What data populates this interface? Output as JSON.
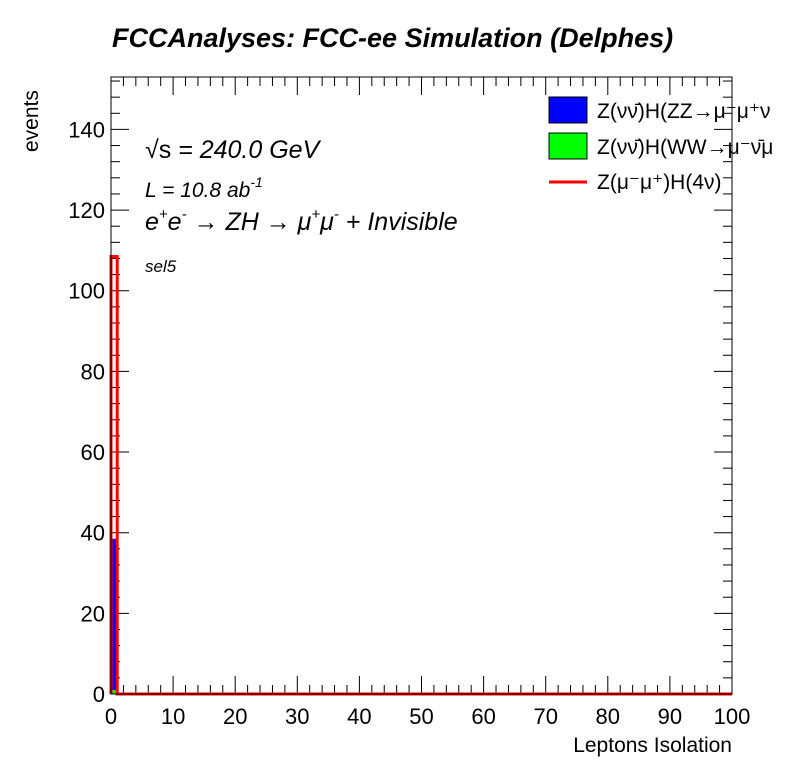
{
  "chart_data": {
    "type": "bar",
    "title": "FCCAnalyses: FCC-ee Simulation (Delphes)",
    "xlabel": "Leptons Isolation",
    "ylabel": "events",
    "xlim": [
      0,
      100
    ],
    "ylim": [
      0,
      153
    ],
    "x_ticks": [
      "0",
      "10",
      "20",
      "30",
      "40",
      "50",
      "60",
      "70",
      "80",
      "90",
      "100"
    ],
    "y_ticks": [
      "0",
      "20",
      "40",
      "60",
      "80",
      "100",
      "120",
      "140"
    ],
    "bin_width": 1,
    "series": [
      {
        "name": "Z(νν̄)H(ZZ→μ⁻μ⁺ν",
        "style": "filled",
        "color": "#0000ff",
        "bins": [
          {
            "x": 0,
            "value": 38.5
          }
        ]
      },
      {
        "name": "Z(νν̄)H(WW→μ⁻ν̄μ",
        "style": "filled",
        "color": "#00ff00",
        "bins": [
          {
            "x": 0,
            "value": 1.0
          }
        ]
      },
      {
        "name": "Z(μ⁻μ⁺)H(4ν)",
        "style": "line",
        "color": "#ff0000",
        "bins": [
          {
            "x": 0,
            "value": 108.5
          }
        ]
      }
    ],
    "annotations": {
      "energy_sqrt": "√s",
      "energy_value": " = 240.0 GeV",
      "lumi_text": "L = 10.8 ab",
      "lumi_exp": "-1",
      "process_part1": "e",
      "process_sup1": "+",
      "process_part2": "e",
      "process_sup2": "-",
      "process_part3": " → ZH → μ",
      "process_sup3": "+",
      "process_part4": "μ",
      "process_sup4": "-",
      "process_part5": " + Invisible",
      "selection": "sel5"
    },
    "legend_position": "top-right"
  }
}
